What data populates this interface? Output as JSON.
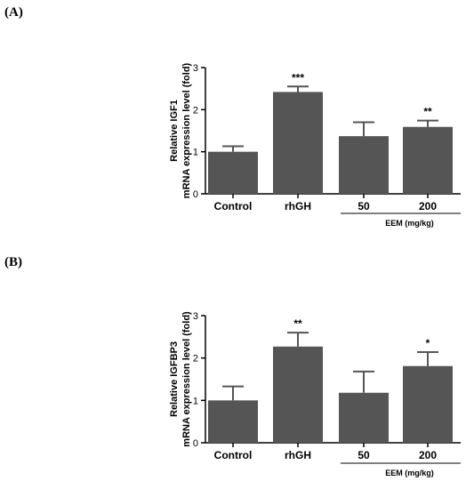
{
  "chart_data": [
    {
      "panel_label": "(A)",
      "type": "bar",
      "categories": [
        "Control",
        "rhGH",
        "50",
        "200"
      ],
      "values": [
        1.0,
        2.42,
        1.37,
        1.59
      ],
      "errors": [
        0.13,
        0.13,
        0.33,
        0.15
      ],
      "significance": [
        "",
        "***",
        "",
        "**"
      ],
      "ylabel_lines": [
        "Relative IGF1",
        "mRNA expression level (fold)"
      ],
      "ylim": [
        0,
        3
      ],
      "yticks": [
        0,
        1,
        2,
        3
      ],
      "group_label": "EEM (mg/kg)",
      "bar_color": "#555555"
    },
    {
      "panel_label": "(B)",
      "type": "bar",
      "categories": [
        "Control",
        "rhGH",
        "50",
        "200"
      ],
      "values": [
        1.0,
        2.27,
        1.18,
        1.81
      ],
      "errors": [
        0.33,
        0.33,
        0.5,
        0.33
      ],
      "significance": [
        "",
        "**",
        "",
        "*"
      ],
      "ylabel_lines": [
        "Relative IGFBP3",
        "mRNA expression level (fold)"
      ],
      "ylim": [
        0,
        3
      ],
      "yticks": [
        0,
        1,
        2,
        3
      ],
      "group_label": "EEM (mg/kg)",
      "bar_color": "#555555"
    }
  ]
}
